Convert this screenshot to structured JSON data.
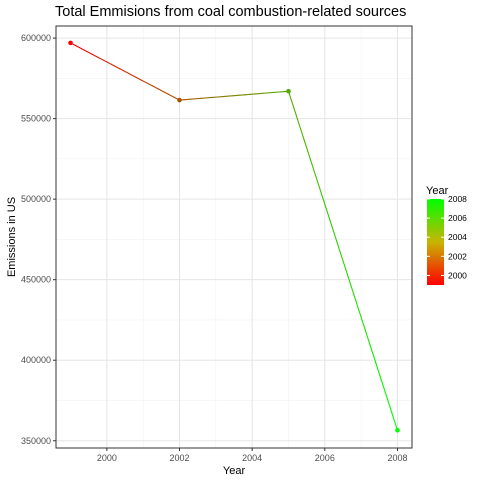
{
  "chart_data": {
    "type": "line",
    "title": "Total Emmisions from coal combustion-related sources",
    "xlabel": "Year",
    "ylabel": "Emissions in US",
    "x": [
      1999,
      2002,
      2005,
      2008
    ],
    "y": [
      597000,
      561500,
      567000,
      356500
    ],
    "xlim": [
      1998.6,
      2008.4
    ],
    "ylim": [
      345500,
      607500
    ],
    "x_ticks": [
      2000,
      2002,
      2004,
      2006,
      2008
    ],
    "y_ticks": [
      350000,
      400000,
      450000,
      500000,
      550000,
      600000
    ],
    "grid": true,
    "legend": {
      "title": "Year",
      "position": "right",
      "ticks": [
        2000,
        2002,
        2004,
        2006,
        2008
      ],
      "range": [
        1999,
        2008
      ],
      "low_color": "#ff0000",
      "high_color": "#00ff00"
    }
  }
}
